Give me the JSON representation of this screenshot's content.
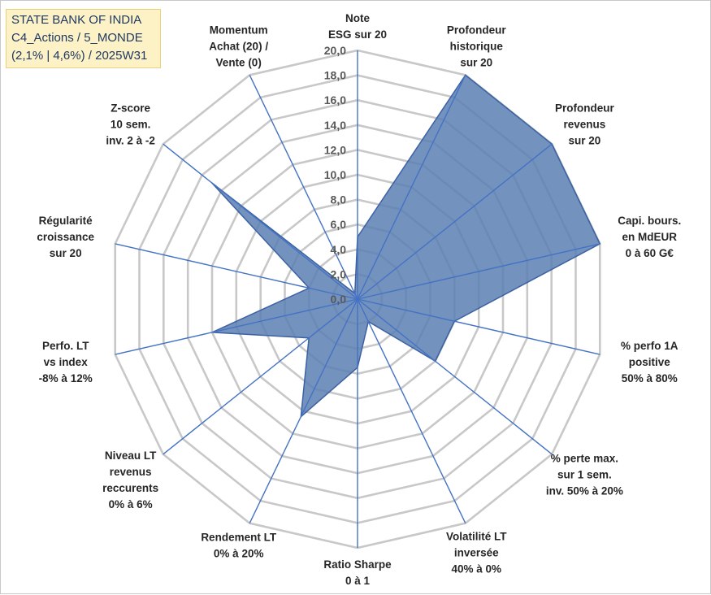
{
  "title_lines": [
    "STATE BANK OF INDIA",
    "C4_Actions / 5_MONDE",
    "(2,1% | 4,6%) / 2025W31"
  ],
  "colors": {
    "fill": "#5a7fb3",
    "stroke": "#3c62a3",
    "spoke": "#4472c4",
    "ring": "#c8c8c8"
  },
  "chart_data": {
    "type": "radar",
    "rmin": 0,
    "rmax": 20,
    "tick_step": 2,
    "tick_labels": [
      "0,0",
      "2,0",
      "4,0",
      "6,0",
      "8,0",
      "10,0",
      "12,0",
      "14,0",
      "16,0",
      "18,0",
      "20,0"
    ],
    "grid": true,
    "axes": [
      {
        "label": [
          "Note",
          "ESG sur 20"
        ],
        "value": 5
      },
      {
        "label": [
          "Profondeur",
          "historique",
          "sur 20"
        ],
        "value": 20
      },
      {
        "label": [
          "Profondeur",
          "revenus",
          "sur 20"
        ],
        "value": 20
      },
      {
        "label": [
          "Capi. bours.",
          "en MdEUR",
          "0 à 60 G€"
        ],
        "value": 20
      },
      {
        "label": [
          "% perfo 1A",
          "positive",
          "50% à 80%"
        ],
        "value": 8
      },
      {
        "label": [
          "% perte max.",
          "sur 1 sem.",
          "inv. 50% à 20%"
        ],
        "value": 8
      },
      {
        "label": [
          "Volatilité LT",
          "inversée",
          "40% à 0%"
        ],
        "value": 2
      },
      {
        "label": [
          "Ratio Sharpe",
          "0 à 1"
        ],
        "value": 5.5
      },
      {
        "label": [
          "Rendement LT",
          "0% à 20%"
        ],
        "value": 10.5
      },
      {
        "label": [
          "Niveau LT",
          "revenus",
          "reccurents",
          "0% à 6%"
        ],
        "value": 5
      },
      {
        "label": [
          "Perfo. LT",
          "vs index",
          "-8% à 12%"
        ],
        "value": 12
      },
      {
        "label": [
          "Régularité",
          "croissance",
          "sur 20"
        ],
        "value": 4
      },
      {
        "label": [
          "Z-score",
          "10 sem.",
          "inv. 2 à -2"
        ],
        "value": 15
      },
      {
        "label": [
          "Momentum",
          "Achat (20) /",
          "Vente (0)"
        ],
        "value": 0.5
      }
    ]
  }
}
